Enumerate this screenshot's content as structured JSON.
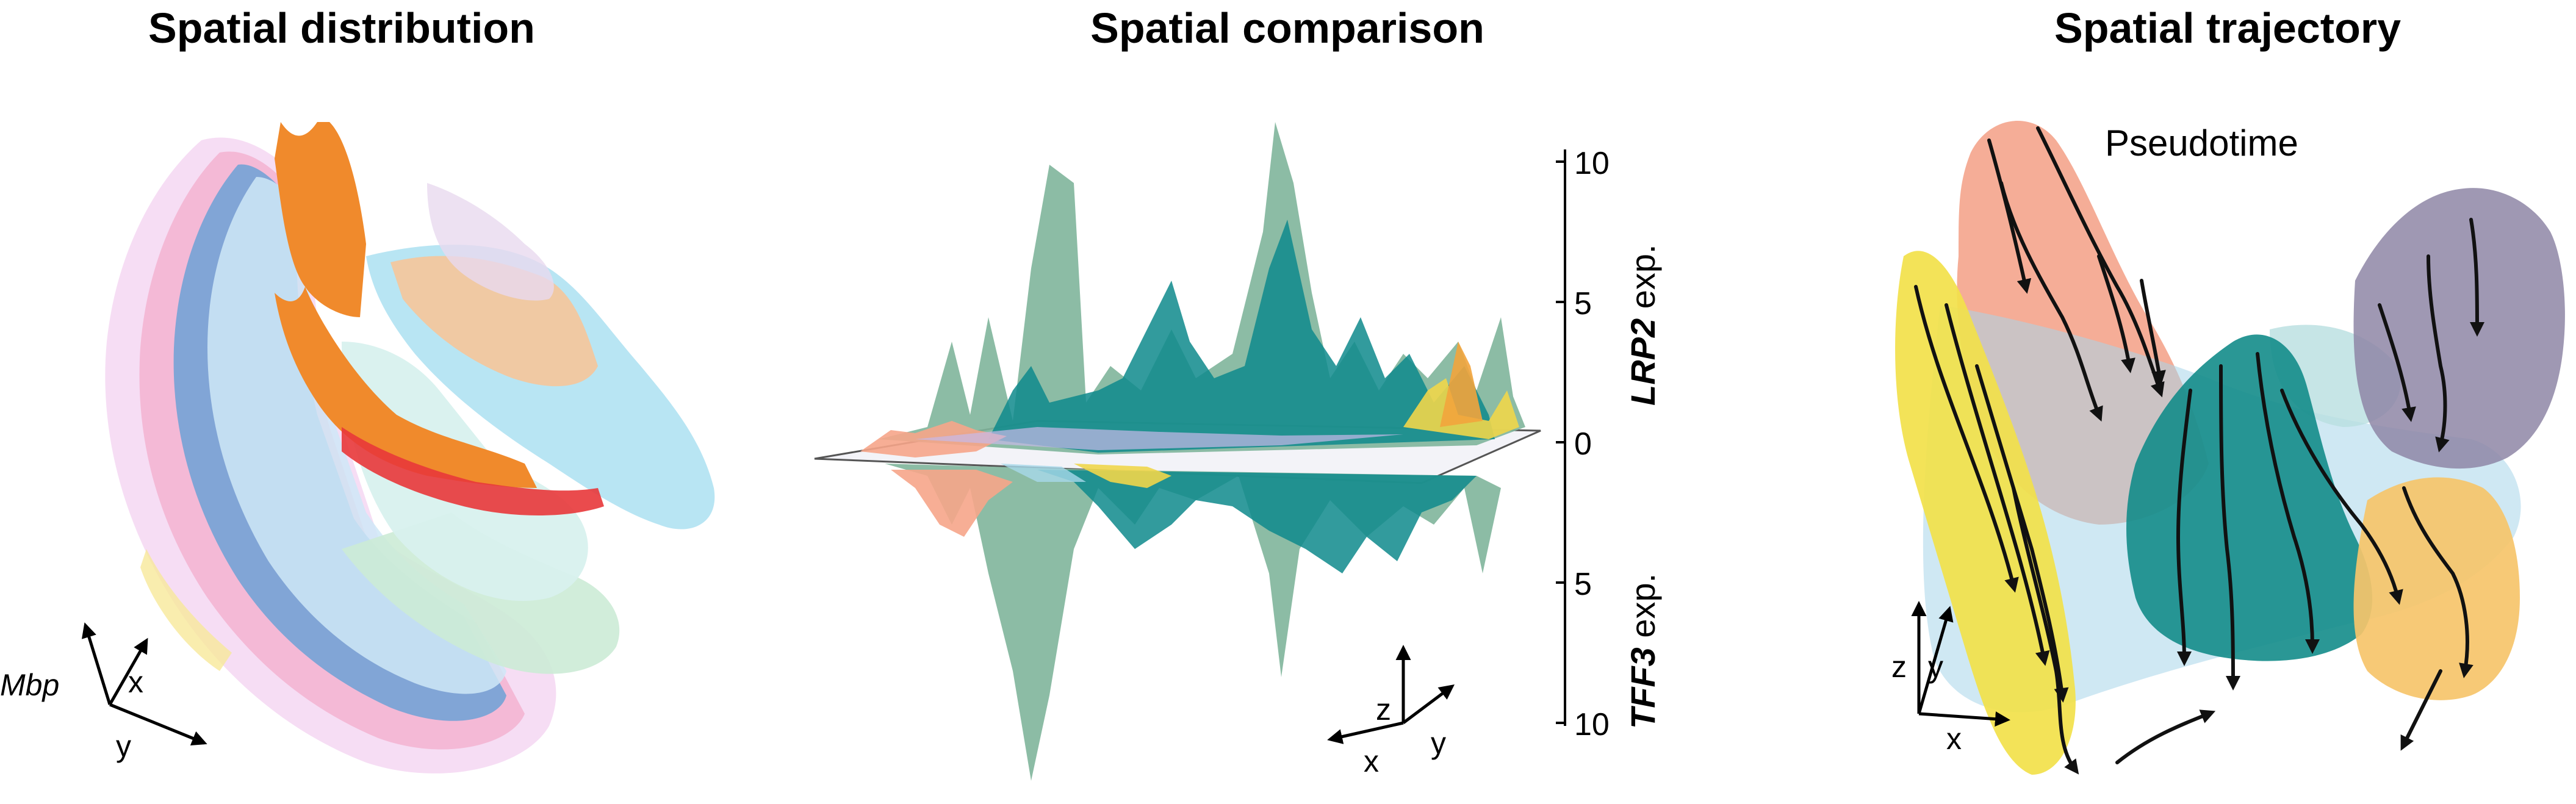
{
  "panels": [
    {
      "title": "Spatial distribution",
      "axes": {
        "vertical": "Mbp",
        "x": "x",
        "y": "y"
      },
      "colors": [
        "#f08a2c",
        "#f6c59a",
        "#bfe3f0",
        "#f4a9c9",
        "#f3d1f0",
        "#5b9fd6",
        "#cfe8f7",
        "#ccebd6",
        "#e8d9ef",
        "#e8373a",
        "#f7e99a",
        "#a6dff0"
      ]
    },
    {
      "title": "Spatial comparison",
      "axes": {
        "z": "z",
        "x": "x",
        "y": "y"
      },
      "scale": {
        "upper_gene": "LRP2",
        "upper_suffix": " exp.",
        "lower_gene": "TFF3",
        "lower_suffix": " exp.",
        "ticks": [
          "10",
          "5",
          "0",
          "5",
          "10"
        ]
      },
      "colors": [
        "#7fb59b",
        "#0e8a8c",
        "#f6a58a",
        "#f0d64a",
        "#f2a43c",
        "#c8b9e8",
        "#a8d8ea"
      ]
    },
    {
      "title": "Spatial trajectory",
      "annotation": "Pseudotime",
      "axes": {
        "z": "z",
        "y": "y",
        "x": "x"
      },
      "colors": [
        "#f4a68e",
        "#f2e14a",
        "#138c8a",
        "#f6c46a",
        "#8e86a6",
        "#a8d6ea",
        "#b8dfe0"
      ]
    }
  ]
}
